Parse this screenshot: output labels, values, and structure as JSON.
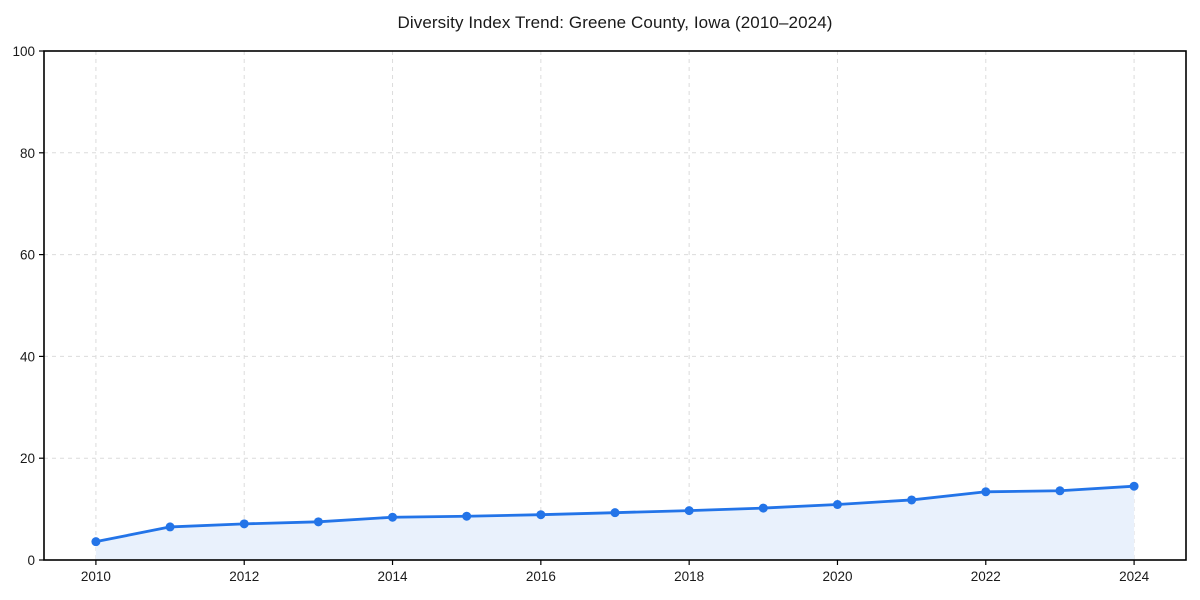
{
  "chart_data": {
    "type": "area",
    "title": "Diversity Index Trend: Greene County, Iowa (2010–2024)",
    "series_name": "Diversity Index",
    "x": [
      2010,
      2011,
      2012,
      2013,
      2014,
      2015,
      2016,
      2017,
      2018,
      2019,
      2020,
      2021,
      2022,
      2023,
      2024
    ],
    "values": [
      3.6,
      6.5,
      7.1,
      7.5,
      8.4,
      8.6,
      8.9,
      9.3,
      9.7,
      10.2,
      10.9,
      11.8,
      13.4,
      13.6,
      14.5
    ],
    "xlabel": "",
    "ylabel": "",
    "xlim": [
      2009.3,
      2024.7
    ],
    "ylim": [
      0,
      100
    ],
    "xticks": [
      2010,
      2012,
      2014,
      2016,
      2018,
      2020,
      2022,
      2024
    ],
    "yticks": [
      0,
      20,
      40,
      60,
      80,
      100
    ],
    "grid": true,
    "grid_style": "dashed",
    "legend": false,
    "colors": {
      "line": "#2374e8",
      "marker": "#2374e8",
      "fill": "#e9f1fc",
      "grid": "#dcdcdc",
      "frame": "#000000",
      "text": "#1a1a1a"
    }
  }
}
